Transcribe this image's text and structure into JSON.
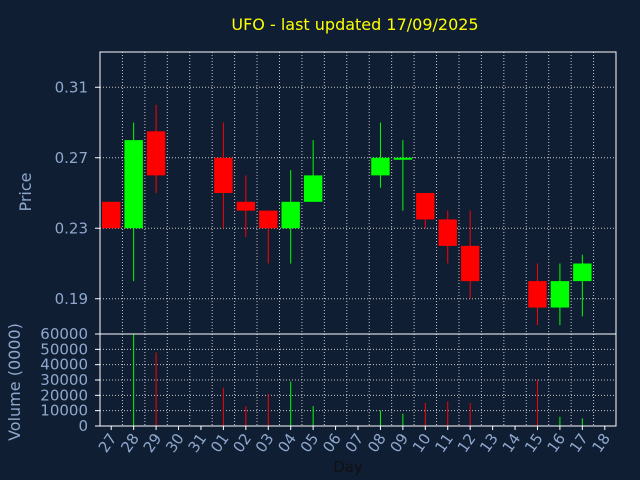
{
  "chart_data": {
    "type": "candlestick",
    "title": "UFO - last updated 17/09/2025",
    "ylabel": "Price",
    "volume_ylabel": "Volume (0000)",
    "xlabel": "Day",
    "price_ticks": [
      "0.31",
      "0.27",
      "0.23",
      "0.19"
    ],
    "volume_ticks": [
      "60000",
      "50000",
      "40000",
      "30000",
      "20000",
      "10000",
      "0"
    ],
    "x": [
      "27",
      "28",
      "29",
      "30",
      "31",
      "01",
      "02",
      "03",
      "04",
      "05",
      "06",
      "07",
      "08",
      "09",
      "10",
      "11",
      "12",
      "13",
      "14",
      "15",
      "16",
      "17",
      "18"
    ],
    "ylim": [
      0.17,
      0.33
    ],
    "volume_ylim": [
      0,
      60000
    ],
    "grid": true,
    "colors": {
      "up": "#00ff00",
      "down": "#ff0000",
      "grid": "#c8c8c8",
      "frame": "#ffffff",
      "title": "#ffff00",
      "axis_text": "#8fa8cc"
    },
    "candles": [
      {
        "day": "27",
        "open": 0.245,
        "high": 0.245,
        "low": 0.23,
        "close": 0.23,
        "volume": 0
      },
      {
        "day": "28",
        "open": 0.23,
        "high": 0.29,
        "low": 0.2,
        "close": 0.28,
        "volume": 60000
      },
      {
        "day": "29",
        "open": 0.285,
        "high": 0.3,
        "low": 0.25,
        "close": 0.26,
        "volume": 48000
      },
      {
        "day": "01",
        "open": 0.27,
        "high": 0.29,
        "low": 0.23,
        "close": 0.25,
        "volume": 25000
      },
      {
        "day": "02",
        "open": 0.245,
        "high": 0.26,
        "low": 0.225,
        "close": 0.24,
        "volume": 13000
      },
      {
        "day": "03",
        "open": 0.24,
        "high": 0.24,
        "low": 0.21,
        "close": 0.23,
        "volume": 21000
      },
      {
        "day": "04",
        "open": 0.23,
        "high": 0.263,
        "low": 0.21,
        "close": 0.245,
        "volume": 29000
      },
      {
        "day": "05",
        "open": 0.245,
        "high": 0.28,
        "low": 0.245,
        "close": 0.26,
        "volume": 13000
      },
      {
        "day": "08",
        "open": 0.26,
        "high": 0.29,
        "low": 0.253,
        "close": 0.27,
        "volume": 10000
      },
      {
        "day": "09",
        "open": 0.269,
        "high": 0.28,
        "low": 0.24,
        "close": 0.27,
        "volume": 8000
      },
      {
        "day": "10",
        "open": 0.25,
        "high": 0.25,
        "low": 0.23,
        "close": 0.235,
        "volume": 15000
      },
      {
        "day": "11",
        "open": 0.235,
        "high": 0.24,
        "low": 0.21,
        "close": 0.22,
        "volume": 16000
      },
      {
        "day": "12",
        "open": 0.22,
        "high": 0.24,
        "low": 0.19,
        "close": 0.2,
        "volume": 15000
      },
      {
        "day": "15",
        "open": 0.2,
        "high": 0.21,
        "low": 0.175,
        "close": 0.185,
        "volume": 30000
      },
      {
        "day": "16",
        "open": 0.185,
        "high": 0.21,
        "low": 0.175,
        "close": 0.2,
        "volume": 6000
      },
      {
        "day": "17",
        "open": 0.2,
        "high": 0.215,
        "low": 0.18,
        "close": 0.21,
        "volume": 5000
      }
    ]
  }
}
